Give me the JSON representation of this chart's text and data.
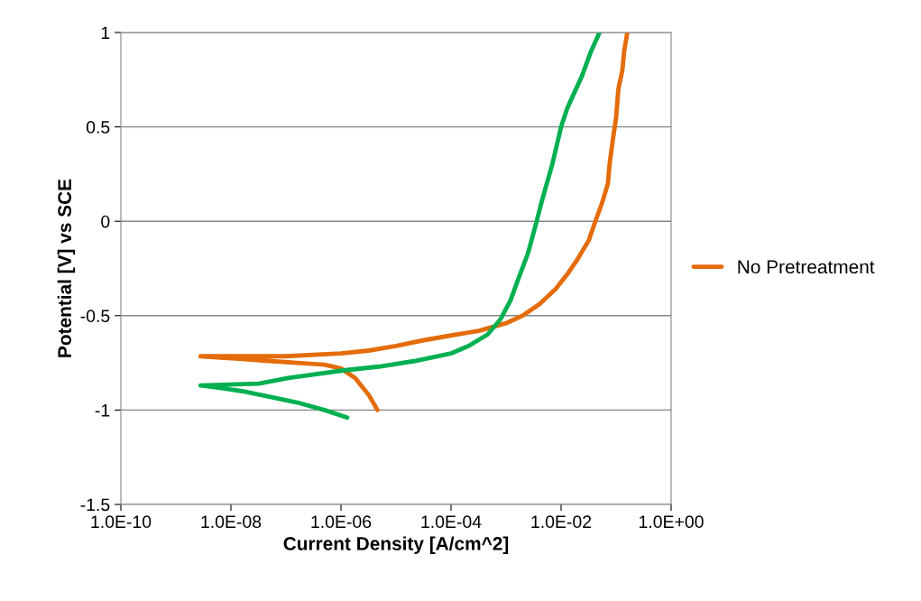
{
  "chart_data": {
    "type": "line",
    "xlabel": "Current Density [A/cm^2]",
    "ylabel": "Potential [V] vs SCE",
    "log": "x",
    "xlim": [
      1e-10,
      1
    ],
    "ylim": [
      -1.5,
      1
    ],
    "xticks": [
      {
        "value": 1e-10,
        "label": "1.0E-10"
      },
      {
        "value": 1e-08,
        "label": "1.0E-08"
      },
      {
        "value": 1e-06,
        "label": "1.0E-06"
      },
      {
        "value": 0.0001,
        "label": "1.0E-04"
      },
      {
        "value": 0.01,
        "label": "1.0E-02"
      },
      {
        "value": 1,
        "label": "1.0E+00"
      }
    ],
    "yticks": [
      -1.5,
      -1,
      -0.5,
      0,
      0.5,
      1
    ],
    "grid": "y",
    "legend": "right",
    "marker": "none",
    "series": [
      {
        "name": "No Pretreatment",
        "color": "#e46c0a",
        "x": [
          4.6e-06,
          3.2e-06,
          1.8e-06,
          1e-06,
          5e-07,
          1.6e-07,
          5e-08,
          1.6e-08,
          2.8e-09,
          1e-08,
          1e-07,
          1e-06,
          3.2e-06,
          1e-05,
          3.2e-05,
          0.0001,
          0.00032,
          0.001,
          0.002,
          0.004,
          0.0079,
          0.013,
          0.02,
          0.032,
          0.042,
          0.056,
          0.071,
          0.076,
          0.089,
          0.1,
          0.11,
          0.13,
          0.14,
          0.16
        ],
        "values": [
          -1.0,
          -0.92,
          -0.83,
          -0.78,
          -0.76,
          -0.75,
          -0.74,
          -0.73,
          -0.715,
          -0.715,
          -0.715,
          -0.7,
          -0.685,
          -0.66,
          -0.63,
          -0.605,
          -0.58,
          -0.54,
          -0.5,
          -0.44,
          -0.36,
          -0.28,
          -0.2,
          -0.1,
          0,
          0.1,
          0.2,
          0.3,
          0.45,
          0.55,
          0.7,
          0.8,
          0.9,
          1.0
        ]
      },
      {
        "color": "#00b050",
        "x": [
          1.3e-06,
          5e-07,
          1.6e-07,
          5.2e-08,
          1.6e-08,
          5.5e-09,
          2.8e-09,
          3.2e-08,
          1.1e-07,
          1.1e-06,
          4.9e-06,
          2.2e-05,
          0.0001,
          0.00021,
          0.00046,
          0.00079,
          0.0012,
          0.0017,
          0.0025,
          0.0036,
          0.0044,
          0.0069,
          0.01,
          0.013,
          0.024,
          0.035,
          0.05
        ],
        "values": [
          -1.04,
          -1.0,
          -0.96,
          -0.93,
          -0.9,
          -0.88,
          -0.87,
          -0.86,
          -0.83,
          -0.79,
          -0.77,
          -0.74,
          -0.7,
          -0.66,
          -0.6,
          -0.52,
          -0.42,
          -0.3,
          -0.17,
          0,
          0.1,
          0.3,
          0.5,
          0.6,
          0.77,
          0.9,
          1.0
        ]
      }
    ]
  }
}
